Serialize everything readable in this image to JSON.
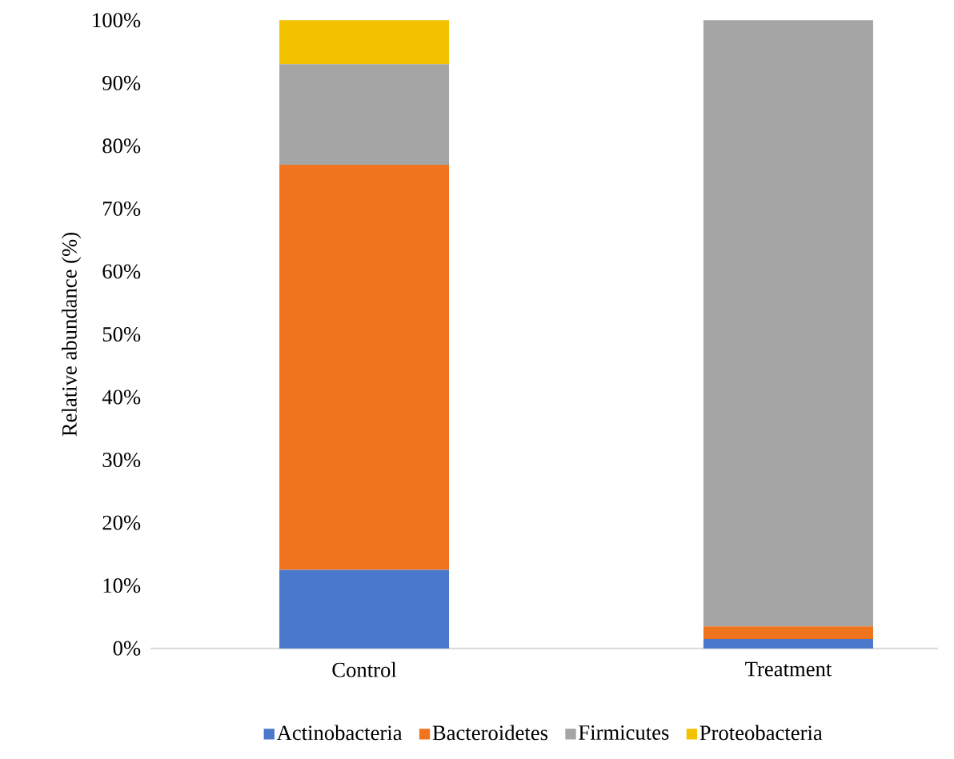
{
  "chart_data": {
    "type": "bar",
    "stacked": true,
    "ylabel": "Relative abundance (%)",
    "categories": [
      "Control",
      "Treatment"
    ],
    "series": [
      {
        "name": "Actinobacteria",
        "color": "#4a78cb",
        "values": [
          12.5,
          1.5
        ]
      },
      {
        "name": "Bacteroidetes",
        "color": "#f0741e",
        "values": [
          64.5,
          2
        ]
      },
      {
        "name": "Firmicutes",
        "color": "#a5a5a5",
        "values": [
          16,
          96.5
        ]
      },
      {
        "name": "Proteobacteria",
        "color": "#f2c100",
        "values": [
          7,
          0
        ]
      }
    ],
    "ylim": [
      0,
      100
    ],
    "yticks": [
      {
        "value": 0,
        "label": "0%"
      },
      {
        "value": 10,
        "label": "10%"
      },
      {
        "value": 20,
        "label": "20%"
      },
      {
        "value": 30,
        "label": "30%"
      },
      {
        "value": 40,
        "label": "40%"
      },
      {
        "value": 50,
        "label": "50%"
      },
      {
        "value": 60,
        "label": "60%"
      },
      {
        "value": 70,
        "label": "70%"
      },
      {
        "value": 80,
        "label": "80%"
      },
      {
        "value": 90,
        "label": "90%"
      },
      {
        "value": 100,
        "label": "100%"
      }
    ],
    "legend": "bottom"
  }
}
